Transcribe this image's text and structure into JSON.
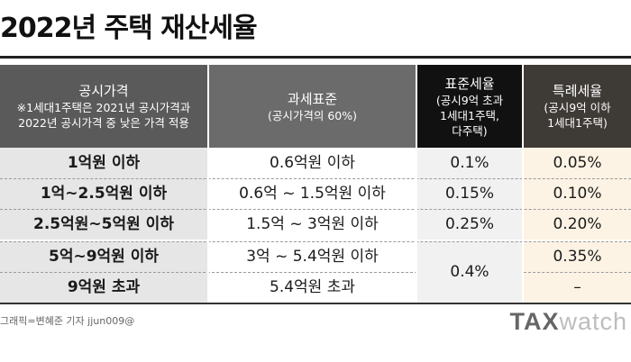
{
  "title": "2022년 주택 재산세율",
  "headers": {
    "col1": {
      "main": "공시가격",
      "sub1": "※1세대1주택은 2021년 공시가격과",
      "sub2": "2022년 공시가격 중 낮은 가격 적용"
    },
    "col2": {
      "main": "과세표준",
      "sub1": "(공시가격의 60%)"
    },
    "col3": {
      "main": "표준세율",
      "sub1": "(공시9억 초과",
      "sub2": "1세대1주택,",
      "sub3": "다주택)"
    },
    "col4": {
      "main": "특례세율",
      "sub1": "(공시9억 이하",
      "sub2": "1세대1주택)"
    }
  },
  "rows": [
    {
      "price": "1억원 이하",
      "base": "0.6억원 이하",
      "standard": "0.1%",
      "special": "0.05%"
    },
    {
      "price": "1억~2.5억원 이하",
      "base": "0.6억 ~ 1.5억원 이하",
      "standard": "0.15%",
      "special": "0.10%"
    },
    {
      "price": "2.5억원~5억원 이하",
      "base": "1.5억 ~ 3억원 이하",
      "standard": "0.25%",
      "special": "0.20%"
    },
    {
      "price": "5억~9억원 이하",
      "base": "3억 ~ 5.4억원 이하",
      "standard": "",
      "special": "0.35%"
    },
    {
      "price": "9억원 초과",
      "base": "5.4억원 초과",
      "standard": "",
      "special": "–"
    }
  ],
  "merged_standard": "0.4%",
  "credit": "그래픽=변혜준 기자 jjun009@",
  "logo": {
    "tax": "TAX",
    "watch": "watch"
  }
}
